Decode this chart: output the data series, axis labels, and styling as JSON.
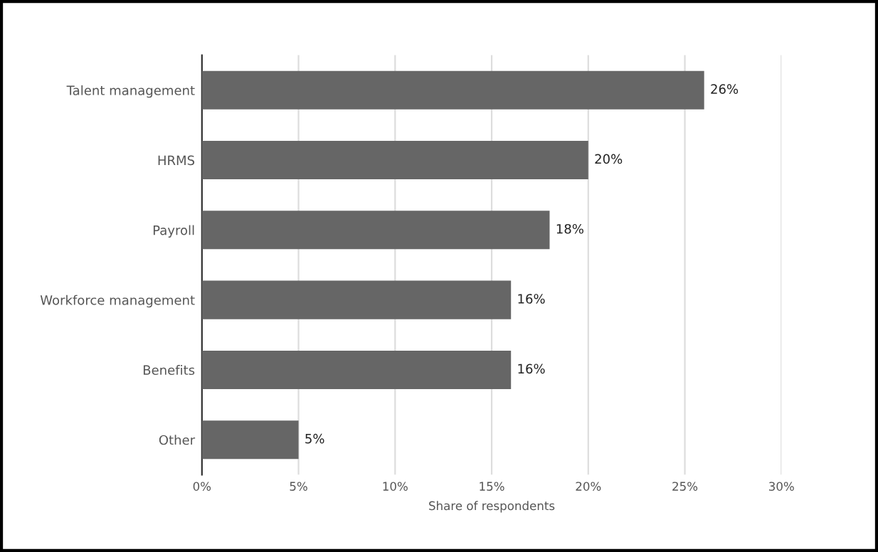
{
  "chart_data": {
    "type": "bar",
    "orientation": "horizontal",
    "xlabel": "Share of respondents",
    "categories": [
      "Talent management",
      "HRMS",
      "Payroll",
      "Workforce management",
      "Benefits",
      "Other"
    ],
    "values": [
      26,
      20,
      18,
      16,
      16,
      5
    ],
    "value_labels": [
      "26%",
      "20%",
      "18%",
      "16%",
      "16%",
      "5%"
    ],
    "color": "#666666",
    "xlim": [
      0,
      30
    ],
    "xticks": [
      {
        "value": 0,
        "label": "0%"
      },
      {
        "value": 5,
        "label": "5%"
      },
      {
        "value": 10,
        "label": "10%"
      },
      {
        "value": 15,
        "label": "15%"
      },
      {
        "value": 20,
        "label": "20%"
      },
      {
        "value": 25,
        "label": "25%"
      },
      {
        "value": 30,
        "label": "30%"
      }
    ],
    "grid": "x"
  }
}
